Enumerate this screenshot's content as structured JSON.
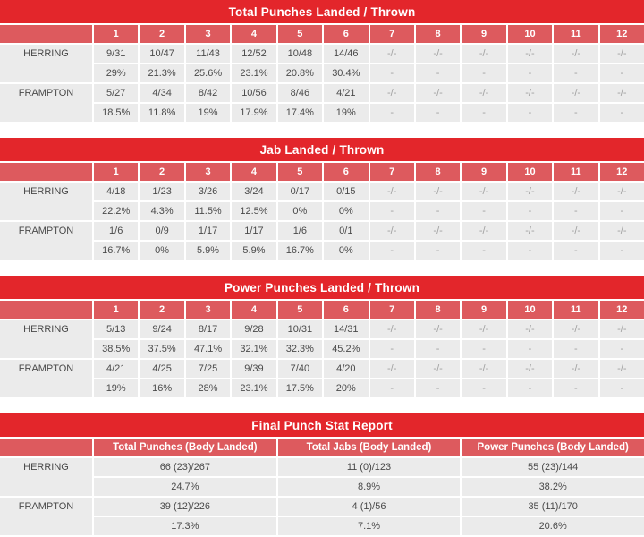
{
  "colors": {
    "title_bar": "#e3262b",
    "header_row": "#dd5a5e",
    "cell_background": "#ebebeb",
    "text": "#4a4a4a",
    "muted_text": "#a0a0a0"
  },
  "chart_data": [
    {
      "type": "table",
      "title": "Total Punches Landed / Thrown",
      "round_columns": [
        "1",
        "2",
        "3",
        "4",
        "5",
        "6",
        "7",
        "8",
        "9",
        "10",
        "11",
        "12"
      ],
      "fighters": [
        {
          "name": "HERRING",
          "landed_thrown": [
            "9/31",
            "10/47",
            "11/43",
            "12/52",
            "10/48",
            "14/46",
            "-/-",
            "-/-",
            "-/-",
            "-/-",
            "-/-",
            "-/-"
          ],
          "accuracy_pct": [
            "29%",
            "21.3%",
            "25.6%",
            "23.1%",
            "20.8%",
            "30.4%",
            "-",
            "-",
            "-",
            "-",
            "-",
            "-"
          ]
        },
        {
          "name": "FRAMPTON",
          "landed_thrown": [
            "5/27",
            "4/34",
            "8/42",
            "10/56",
            "8/46",
            "4/21",
            "-/-",
            "-/-",
            "-/-",
            "-/-",
            "-/-",
            "-/-"
          ],
          "accuracy_pct": [
            "18.5%",
            "11.8%",
            "19%",
            "17.9%",
            "17.4%",
            "19%",
            "-",
            "-",
            "-",
            "-",
            "-",
            "-"
          ]
        }
      ]
    },
    {
      "type": "table",
      "title": "Jab Landed / Thrown",
      "round_columns": [
        "1",
        "2",
        "3",
        "4",
        "5",
        "6",
        "7",
        "8",
        "9",
        "10",
        "11",
        "12"
      ],
      "fighters": [
        {
          "name": "HERRING",
          "landed_thrown": [
            "4/18",
            "1/23",
            "3/26",
            "3/24",
            "0/17",
            "0/15",
            "-/-",
            "-/-",
            "-/-",
            "-/-",
            "-/-",
            "-/-"
          ],
          "accuracy_pct": [
            "22.2%",
            "4.3%",
            "11.5%",
            "12.5%",
            "0%",
            "0%",
            "-",
            "-",
            "-",
            "-",
            "-",
            "-"
          ]
        },
        {
          "name": "FRAMPTON",
          "landed_thrown": [
            "1/6",
            "0/9",
            "1/17",
            "1/17",
            "1/6",
            "0/1",
            "-/-",
            "-/-",
            "-/-",
            "-/-",
            "-/-",
            "-/-"
          ],
          "accuracy_pct": [
            "16.7%",
            "0%",
            "5.9%",
            "5.9%",
            "16.7%",
            "0%",
            "-",
            "-",
            "-",
            "-",
            "-",
            "-"
          ]
        }
      ]
    },
    {
      "type": "table",
      "title": "Power Punches Landed / Thrown",
      "round_columns": [
        "1",
        "2",
        "3",
        "4",
        "5",
        "6",
        "7",
        "8",
        "9",
        "10",
        "11",
        "12"
      ],
      "fighters": [
        {
          "name": "HERRING",
          "landed_thrown": [
            "5/13",
            "9/24",
            "8/17",
            "9/28",
            "10/31",
            "14/31",
            "-/-",
            "-/-",
            "-/-",
            "-/-",
            "-/-",
            "-/-"
          ],
          "accuracy_pct": [
            "38.5%",
            "37.5%",
            "47.1%",
            "32.1%",
            "32.3%",
            "45.2%",
            "-",
            "-",
            "-",
            "-",
            "-",
            "-"
          ]
        },
        {
          "name": "FRAMPTON",
          "landed_thrown": [
            "4/21",
            "4/25",
            "7/25",
            "9/39",
            "7/40",
            "4/20",
            "-/-",
            "-/-",
            "-/-",
            "-/-",
            "-/-",
            "-/-"
          ],
          "accuracy_pct": [
            "19%",
            "16%",
            "28%",
            "23.1%",
            "17.5%",
            "20%",
            "-",
            "-",
            "-",
            "-",
            "-",
            "-"
          ]
        }
      ]
    },
    {
      "type": "table",
      "title": "Final Punch Stat Report",
      "columns": [
        "Total Punches (Body Landed)",
        "Total Jabs (Body Landed)",
        "Power Punches (Body Landed)"
      ],
      "fighters": [
        {
          "name": "HERRING",
          "totals": [
            "66 (23)/267",
            "11 (0)/123",
            "55 (23)/144"
          ],
          "accuracy_pct": [
            "24.7%",
            "8.9%",
            "38.2%"
          ]
        },
        {
          "name": "FRAMPTON",
          "totals": [
            "39 (12)/226",
            "4 (1)/56",
            "35 (11)/170"
          ],
          "accuracy_pct": [
            "17.3%",
            "7.1%",
            "20.6%"
          ]
        }
      ]
    }
  ]
}
